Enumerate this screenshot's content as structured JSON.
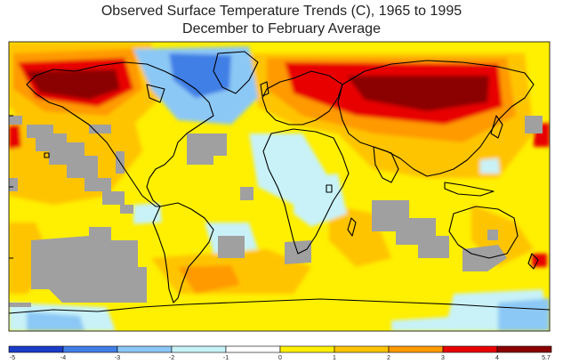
{
  "title": "Observed Surface Temperature Trends (C), 1965 to 1995",
  "subtitle": "December to February Average",
  "colorbar": {
    "ticks": [
      "-5",
      "-4",
      "-3",
      "-2",
      "-1",
      "0",
      "1",
      "2",
      "3",
      "4",
      "5.7"
    ],
    "colors": [
      "#1a3cc8",
      "#3f7fe6",
      "#8cc8f5",
      "#c8f2f8",
      "#ffffff",
      "#ffef00",
      "#ffc400",
      "#ff9a00",
      "#e80000",
      "#8b0000"
    ],
    "missing_color": "#a0a0a0"
  },
  "chart_data": {
    "type": "heatmap",
    "title": "Observed Surface Temperature Trends (C), 1965 to 1995",
    "subtitle": "December to February Average",
    "colorbar_range": [
      -5,
      5.7
    ],
    "colorbar_ticks": [
      -5,
      -4,
      -3,
      -2,
      -1,
      0,
      1,
      2,
      3,
      4,
      5.7
    ],
    "colorbar_colors": [
      "#1a3cc8",
      "#3f7fe6",
      "#8cc8f5",
      "#c8f2f8",
      "#ffffff",
      "#ffef00",
      "#ffc400",
      "#ff9a00",
      "#e80000",
      "#8b0000"
    ]
  }
}
